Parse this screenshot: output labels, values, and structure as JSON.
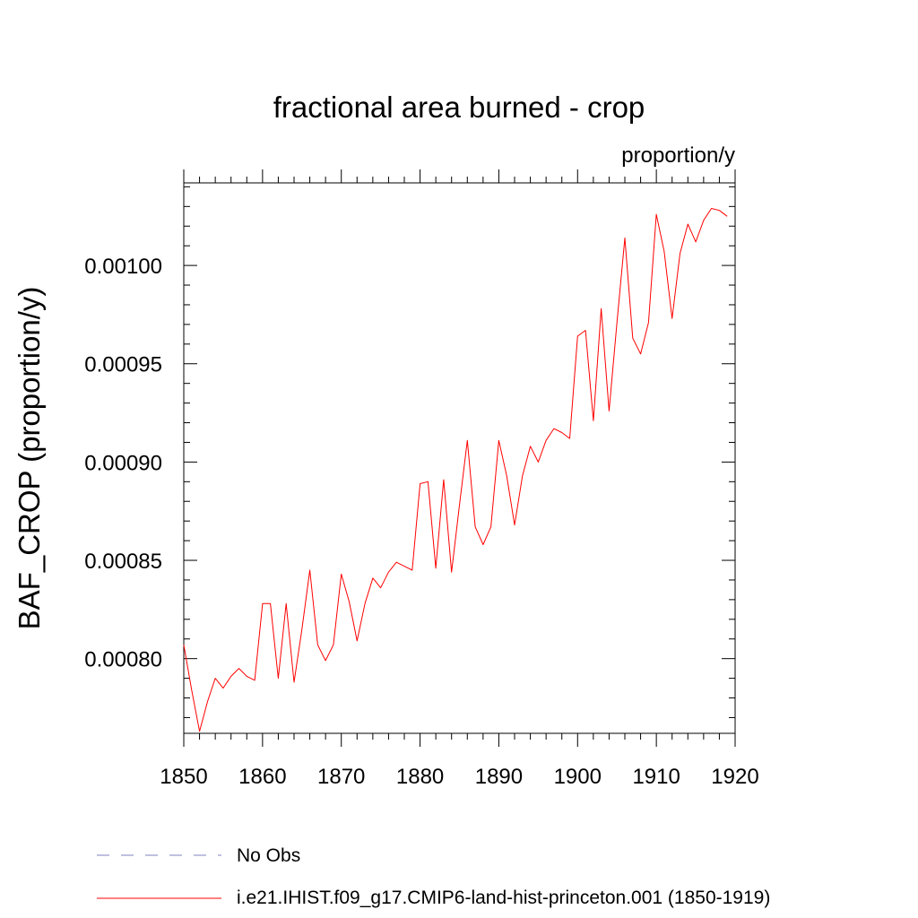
{
  "chart_data": {
    "type": "line",
    "title": "fractional area burned - crop",
    "units_label": "proportion/y",
    "ylabel": "BAF_CROP  (proportion/y)",
    "xlabel": "",
    "xlim": [
      1850,
      1920
    ],
    "ylim": [
      0.000762,
      0.001042
    ],
    "x_ticks": [
      1850,
      1860,
      1870,
      1880,
      1890,
      1900,
      1910,
      1920
    ],
    "x_tick_labels": [
      "1850",
      "1860",
      "1870",
      "1880",
      "1890",
      "1900",
      "1910",
      "1920"
    ],
    "y_ticks": [
      0.0008,
      0.00085,
      0.0009,
      0.00095,
      0.001
    ],
    "y_tick_labels": [
      "0.00080",
      "0.00085",
      "0.00090",
      "0.00095",
      "0.00100"
    ],
    "grid": false,
    "legend_position": "bottom",
    "legend": [
      {
        "label": "No Obs",
        "color": "#8080c0",
        "dash": "dashed"
      },
      {
        "label": "i.e21.IHIST.f09_g17.CMIP6-land-hist-princeton.001 (1850-1919)",
        "color": "#ff0000",
        "dash": "solid"
      }
    ],
    "series": [
      {
        "color": "#ff0000",
        "x": [
          1850,
          1851,
          1852,
          1853,
          1854,
          1855,
          1856,
          1857,
          1858,
          1859,
          1860,
          1861,
          1862,
          1863,
          1864,
          1865,
          1866,
          1867,
          1868,
          1869,
          1870,
          1871,
          1872,
          1873,
          1874,
          1875,
          1876,
          1877,
          1878,
          1879,
          1880,
          1881,
          1882,
          1883,
          1884,
          1885,
          1886,
          1887,
          1888,
          1889,
          1890,
          1891,
          1892,
          1893,
          1894,
          1895,
          1896,
          1897,
          1898,
          1899,
          1900,
          1901,
          1902,
          1903,
          1904,
          1905,
          1906,
          1907,
          1908,
          1909,
          1910,
          1911,
          1912,
          1913,
          1914,
          1915,
          1916,
          1917,
          1918,
          1919
        ],
        "values": [
          0.000807,
          0.000784,
          0.000763,
          0.000778,
          0.00079,
          0.000785,
          0.000791,
          0.000795,
          0.000791,
          0.000789,
          0.000828,
          0.000828,
          0.00079,
          0.000828,
          0.000788,
          0.000815,
          0.000845,
          0.000807,
          0.000799,
          0.000807,
          0.000843,
          0.000829,
          0.000809,
          0.000828,
          0.000841,
          0.000836,
          0.000844,
          0.000849,
          0.000847,
          0.000845,
          0.000889,
          0.00089,
          0.000846,
          0.000891,
          0.000844,
          0.000878,
          0.000911,
          0.000867,
          0.000858,
          0.000867,
          0.000911,
          0.000893,
          0.000868,
          0.000893,
          0.000908,
          0.0009,
          0.000911,
          0.000917,
          0.000915,
          0.000912,
          0.000964,
          0.000967,
          0.000921,
          0.000978,
          0.000926,
          0.000971,
          0.001014,
          0.000963,
          0.000955,
          0.000971,
          0.001026,
          0.001007,
          0.000973,
          0.001006,
          0.001021,
          0.001012,
          0.001023,
          0.001029,
          0.001028,
          0.001025
        ]
      }
    ]
  }
}
